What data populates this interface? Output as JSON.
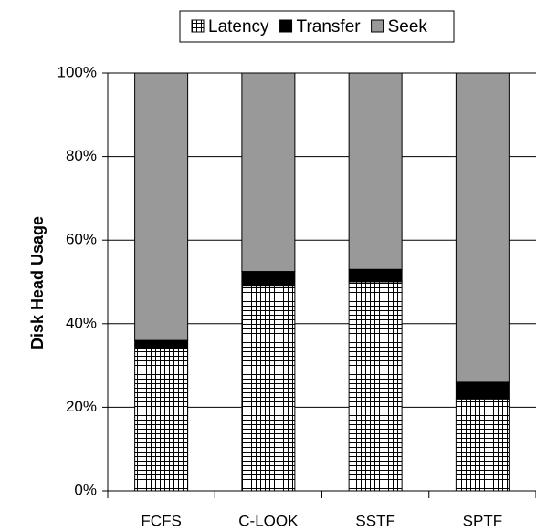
{
  "chart_data": {
    "type": "stacked_bar",
    "y_label": "Disk Head Usage",
    "categories": [
      "FCFS",
      "C-LOOK",
      "SSTF",
      "SPTF"
    ],
    "series": [
      {
        "name": "Latency",
        "color": "#ffffff",
        "pattern": "grid",
        "values": [
          34,
          49,
          50,
          22
        ]
      },
      {
        "name": "Transfer",
        "color": "#000000",
        "values": [
          2,
          3.5,
          3,
          4
        ]
      },
      {
        "name": "Seek",
        "color": "#999999",
        "values": [
          64,
          47.5,
          47,
          74
        ]
      }
    ],
    "ylim": [
      0,
      100
    ],
    "yticks": [
      {
        "value": 0,
        "label": "0%"
      },
      {
        "value": 20,
        "label": "20%"
      },
      {
        "value": 40,
        "label": "40%"
      },
      {
        "value": 60,
        "label": "60%"
      },
      {
        "value": 80,
        "label": "80%"
      },
      {
        "value": 100,
        "label": "100%"
      }
    ],
    "grid": true,
    "legend": "top"
  }
}
